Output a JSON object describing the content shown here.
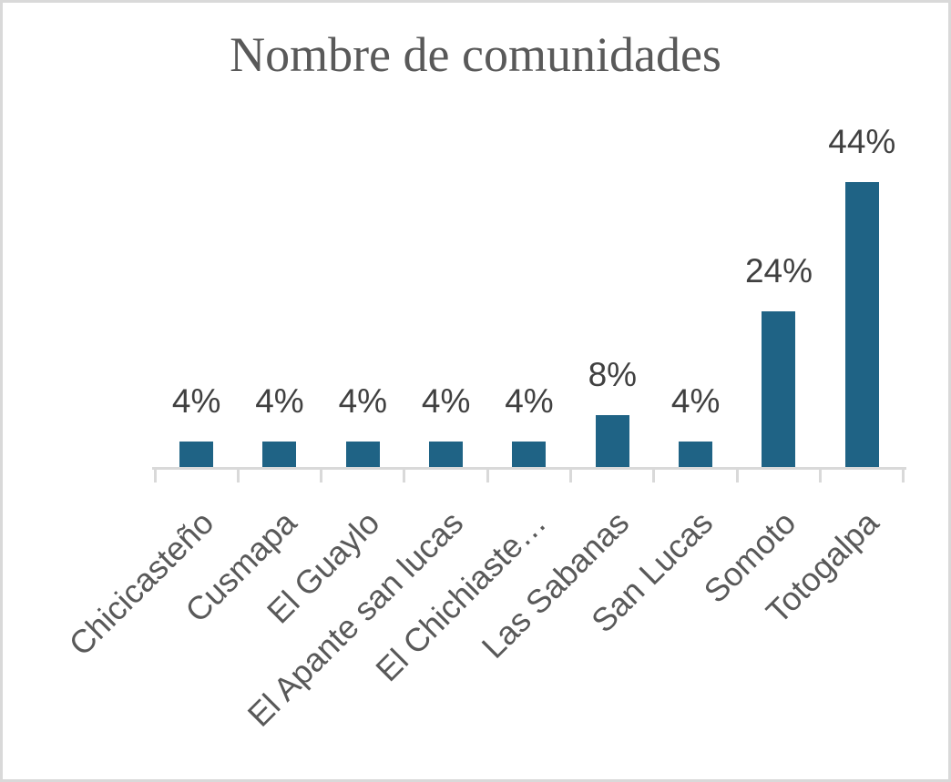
{
  "chart_data": {
    "type": "bar",
    "title": "Nombre de comunidades",
    "categories": [
      "Chicicasteño",
      "Cusmapa",
      "El Guaylo",
      "El Apante san lucas",
      "El Chichiaste…",
      "Las Sabanas",
      "San Lucas",
      "Somoto",
      "Totogalpa"
    ],
    "values": [
      4,
      4,
      4,
      4,
      4,
      8,
      4,
      24,
      44
    ],
    "data_labels": [
      "4%",
      "4%",
      "4%",
      "4%",
      "4%",
      "8%",
      "4%",
      "24%",
      "44%"
    ],
    "unit": "%",
    "xlabel": "",
    "ylabel": "",
    "grid": false,
    "legend": false,
    "x_tick_rotation_deg": 45,
    "colors": {
      "bar": "#1F6385",
      "axis_line": "#D9D9D9",
      "title_text": "#595959",
      "data_label_text": "#404040",
      "category_label_text": "#595959",
      "frame_border": "#D9D9D9",
      "background": "#FFFFFF"
    }
  }
}
